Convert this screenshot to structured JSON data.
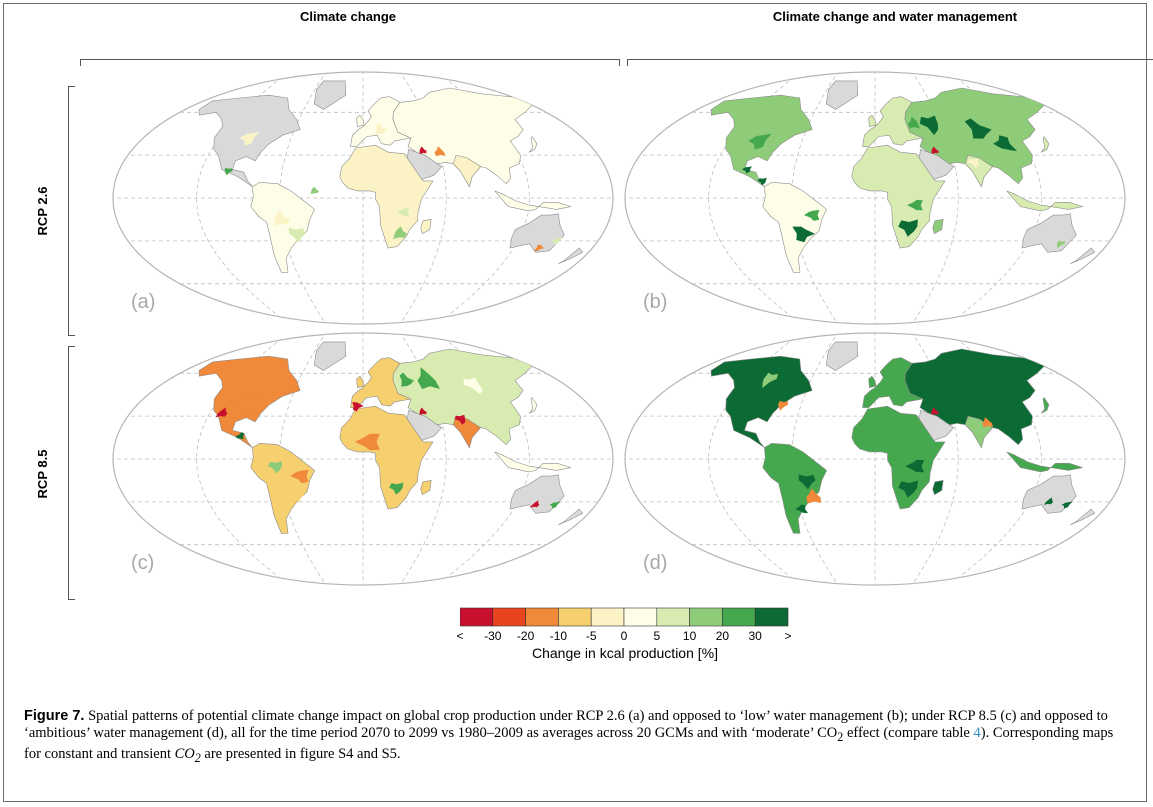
{
  "columns": [
    "Climate change",
    "Climate change and water management"
  ],
  "rows": [
    "RCP 2.6",
    "RCP 8.5"
  ],
  "panels": [
    {
      "label": "(a)",
      "scenario": "RCP 2.6",
      "column": "Climate change",
      "dominant_change": "slight negative to neutral"
    },
    {
      "label": "(b)",
      "scenario": "RCP 2.6",
      "column": "Climate change and water management",
      "dominant_change": "positive"
    },
    {
      "label": "(c)",
      "scenario": "RCP 8.5",
      "column": "Climate change",
      "dominant_change": "negative"
    },
    {
      "label": "(d)",
      "scenario": "RCP 8.5",
      "column": "Climate change and water management",
      "dominant_change": "strongly positive"
    }
  ],
  "legend": {
    "title": "Change in kcal production [%]",
    "ticks": [
      "<",
      "-30",
      "-20",
      "-10",
      "-5",
      "0",
      "5",
      "10",
      "20",
      "30",
      ">"
    ],
    "colors": [
      "#c8102e",
      "#e8451f",
      "#f0893a",
      "#f6cf6e",
      "#fbf3c6",
      "#fefde8",
      "#d8ecb2",
      "#8fcc7a",
      "#45a84f",
      "#0c6b34"
    ]
  },
  "map_colors": {
    "land_no_data": "#d9d9d9",
    "ocean": "#ffffff",
    "graticule": "#bfbfbf",
    "border": "#8c8c8c"
  },
  "caption": {
    "figure_label": "Figure 7.",
    "text_1": " Spatial patterns of potential climate change impact on global crop production under RCP 2.6 (a) and opposed to ‘low’ water management (b); under RCP 8.5 (c) and opposed to ‘ambitious’ water management (d), all for the time period 2070 to 2099 vs 1980–2009 as averages across 20 GCMs and with ‘moderate’ ",
    "co2_1": "CO",
    "sub_2a": "2",
    "text_2": " effect (compare table ",
    "table_ref": "4",
    "text_3": "). Corresponding maps for constant and transient ",
    "co2_2": "CO",
    "sub_2b": "2",
    "text_4": " are presented in figure S4 and S5."
  }
}
